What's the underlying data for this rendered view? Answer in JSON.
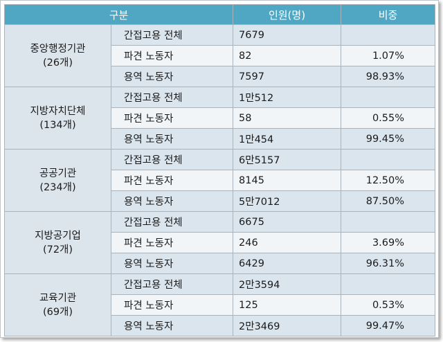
{
  "table": {
    "headers": [
      "구분",
      "인원(명)",
      "비중"
    ],
    "groups": [
      {
        "name": "중앙행정기관",
        "count": "(26개)",
        "rows": [
          {
            "category": "간접고용 전체",
            "people": "7679",
            "ratio": ""
          },
          {
            "category": "파견 노동자",
            "people": "82",
            "ratio": "1.07%"
          },
          {
            "category": "용역 노동자",
            "people": "7597",
            "ratio": "98.93%"
          }
        ]
      },
      {
        "name": "지방자치단체",
        "count": "(134개)",
        "rows": [
          {
            "category": "간접고용 전체",
            "people": "1만512",
            "ratio": ""
          },
          {
            "category": "파견 노동자",
            "people": "58",
            "ratio": "0.55%"
          },
          {
            "category": "용역 노동자",
            "people": "1만454",
            "ratio": "99.45%"
          }
        ]
      },
      {
        "name": "공공기관",
        "count": "(234개)",
        "rows": [
          {
            "category": "간접고용 전체",
            "people": "6만5157",
            "ratio": ""
          },
          {
            "category": "파견 노동자",
            "people": "8145",
            "ratio": "12.50%"
          },
          {
            "category": "용역 노동자",
            "people": "5만7012",
            "ratio": "87.50%"
          }
        ]
      },
      {
        "name": "지방공기업",
        "count": "(72개)",
        "rows": [
          {
            "category": "간접고용 전체",
            "people": "6675",
            "ratio": ""
          },
          {
            "category": "파견 노동자",
            "people": "246",
            "ratio": "3.69%"
          },
          {
            "category": "용역 노동자",
            "people": "6429",
            "ratio": "96.31%"
          }
        ]
      },
      {
        "name": "교육기관",
        "count": "(69개)",
        "rows": [
          {
            "category": "간접고용 전체",
            "people": "2만3594",
            "ratio": ""
          },
          {
            "category": "파견 노동자",
            "people": "125",
            "ratio": "0.53%"
          },
          {
            "category": "용역 노동자",
            "people": "2만3469",
            "ratio": "99.47%"
          }
        ]
      }
    ]
  },
  "colors": {
    "header_bg": "#4fa7c4",
    "header_text": "#ffffff",
    "group_bg": "#dde5ec",
    "row_shade": "#dbe5ee",
    "row_plain": "#f2f5f8",
    "border": "#a9b3bb"
  }
}
